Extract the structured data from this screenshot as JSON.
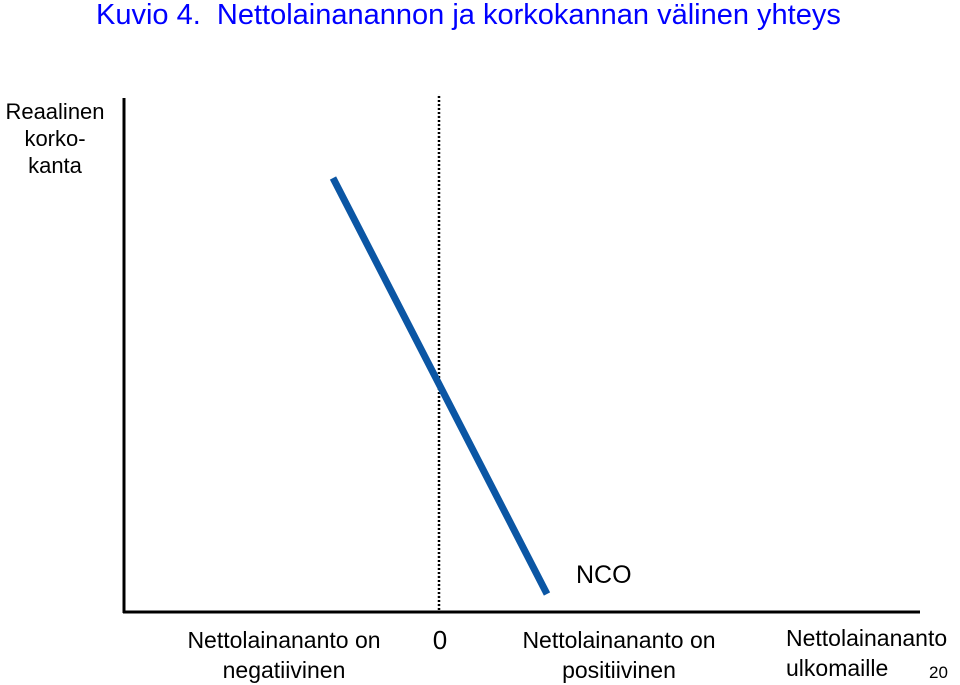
{
  "title": {
    "prefix": "Kuvio 4.",
    "text": "Nettolainanannon ja korkokannan välinen yhteys",
    "color": "#0000ff"
  },
  "y_axis": {
    "label_lines": [
      "Reaalinen",
      "korko-",
      "kanta"
    ]
  },
  "curve": {
    "label": "NCO",
    "color": "#0b56a4"
  },
  "x_axis": {
    "origin_label": "0",
    "negative_label_lines": [
      "Nettolainananto on",
      "negatiivinen"
    ],
    "positive_label_lines": [
      "Nettolainananto on",
      "positiivinen"
    ],
    "axis_label_lines": [
      "Nettolainananto",
      "ulkomaille"
    ]
  },
  "page_number": "20"
}
